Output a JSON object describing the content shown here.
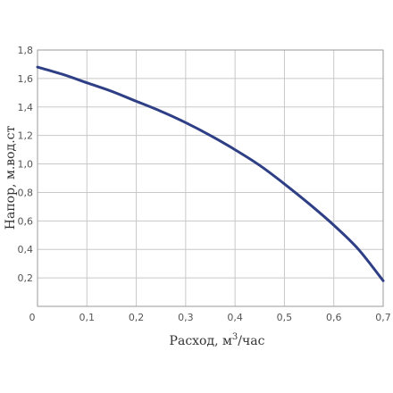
{
  "chart_data": {
    "type": "line",
    "xlabel_main": "Расход, м",
    "xlabel_sup": "3",
    "xlabel_tail": "/час",
    "ylabel": "Напор, м.вод.ст",
    "xlim": [
      0,
      0.7
    ],
    "ylim": [
      0,
      1.8
    ],
    "x_ticks": [
      "0",
      "0,1",
      "0,2",
      "0,3",
      "0,4",
      "0,5",
      "0,6",
      "0,7"
    ],
    "y_ticks": [
      "0,2",
      "0,4",
      "0,6",
      "0,8",
      "1,0",
      "1,2",
      "1,4",
      "1,6",
      "1,8"
    ],
    "grid": true,
    "series": [
      {
        "color": "#2e3f86",
        "x": [
          0.0,
          0.05,
          0.1,
          0.15,
          0.2,
          0.25,
          0.3,
          0.35,
          0.4,
          0.45,
          0.5,
          0.55,
          0.6,
          0.65,
          0.7
        ],
        "y": [
          1.68,
          1.63,
          1.57,
          1.51,
          1.44,
          1.37,
          1.29,
          1.2,
          1.1,
          0.99,
          0.86,
          0.72,
          0.57,
          0.4,
          0.18
        ]
      }
    ]
  }
}
